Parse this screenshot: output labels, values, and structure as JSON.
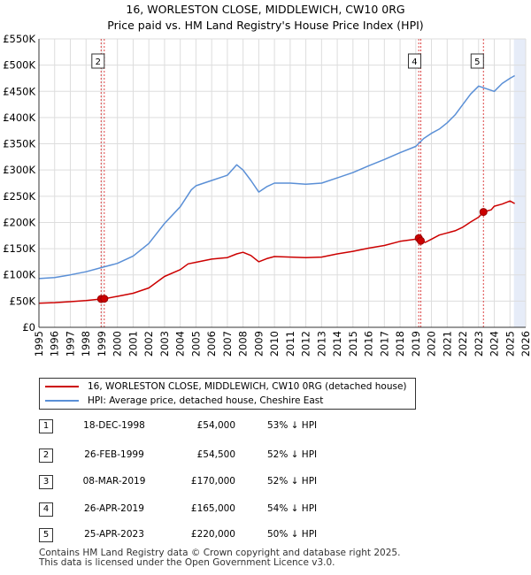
{
  "title": "16, WORLESTON CLOSE, MIDDLEWICH, CW10 0RG",
  "subtitle": "Price paid vs. HM Land Registry's House Price Index (HPI)",
  "chart_data": {
    "type": "line",
    "xlim": [
      1995,
      2026
    ],
    "ylim": [
      0,
      550000
    ],
    "yticks": [
      {
        "value": 0,
        "label": "£0"
      },
      {
        "value": 50000,
        "label": "£50K"
      },
      {
        "value": 100000,
        "label": "£100K"
      },
      {
        "value": 150000,
        "label": "£150K"
      },
      {
        "value": 200000,
        "label": "£200K"
      },
      {
        "value": 250000,
        "label": "£250K"
      },
      {
        "value": 300000,
        "label": "£300K"
      },
      {
        "value": 350000,
        "label": "£350K"
      },
      {
        "value": 400000,
        "label": "£400K"
      },
      {
        "value": 450000,
        "label": "£450K"
      },
      {
        "value": 500000,
        "label": "£500K"
      },
      {
        "value": 550000,
        "label": "£550K"
      }
    ],
    "xticks": [
      "1995",
      "1996",
      "1997",
      "1998",
      "1999",
      "2000",
      "2001",
      "2002",
      "2003",
      "2004",
      "2005",
      "2006",
      "2007",
      "2008",
      "2009",
      "2010",
      "2011",
      "2012",
      "2013",
      "2014",
      "2015",
      "2016",
      "2017",
      "2018",
      "2019",
      "2020",
      "2021",
      "2022",
      "2023",
      "2024",
      "2025",
      "2026"
    ],
    "future_shade_start": 2025.25,
    "series": [
      {
        "name": "16, WORLESTON CLOSE, MIDDLEWICH, CW10 0RG (detached house)",
        "color": "#cc0000",
        "x": [
          1995,
          1996,
          1997,
          1998,
          1998.96,
          1999.16,
          2000,
          2001,
          2002,
          2003,
          2004,
          2004.5,
          2005,
          2006,
          2007,
          2007.6,
          2008,
          2008.5,
          2009,
          2009.5,
          2010,
          2011,
          2012,
          2013,
          2014,
          2015,
          2016,
          2017,
          2018,
          2019.0,
          2019.19,
          2019.32,
          2019.6,
          2020,
          2020.5,
          2021,
          2021.5,
          2022,
          2022.5,
          2023.0,
          2023.31,
          2023.8,
          2024,
          2024.5,
          2025,
          2025.3
        ],
        "values": [
          46000,
          47000,
          49000,
          51000,
          54000,
          54500,
          59000,
          65000,
          75000,
          97000,
          110000,
          121000,
          124000,
          130000,
          133000,
          140000,
          143000,
          137000,
          125000,
          131000,
          135000,
          134000,
          133000,
          134000,
          140000,
          145000,
          151000,
          156000,
          164000,
          168000,
          170000,
          165000,
          162000,
          168000,
          176000,
          180000,
          184000,
          191000,
          201000,
          210000,
          220000,
          224000,
          231000,
          235000,
          241000,
          236000
        ]
      },
      {
        "name": "HPI: Average price, detached house, Cheshire East",
        "color": "#5a8fd6",
        "x": [
          1995,
          1996,
          1997,
          1998,
          1999,
          2000,
          2001,
          2002,
          2003,
          2004,
          2004.7,
          2005,
          2006,
          2007,
          2007.6,
          2008,
          2008.5,
          2009,
          2009.5,
          2010,
          2011,
          2012,
          2013,
          2014,
          2015,
          2016,
          2017,
          2018,
          2019,
          2019.5,
          2020,
          2020.5,
          2021,
          2021.5,
          2022,
          2022.5,
          2023,
          2023.5,
          2024,
          2024.5,
          2025,
          2025.3
        ],
        "values": [
          93000,
          95000,
          100000,
          106000,
          114000,
          122000,
          136000,
          160000,
          198000,
          230000,
          262000,
          270000,
          280000,
          290000,
          310000,
          300000,
          280000,
          258000,
          268000,
          275000,
          275000,
          273000,
          275000,
          285000,
          295000,
          308000,
          320000,
          333000,
          345000,
          360000,
          370000,
          378000,
          390000,
          405000,
          425000,
          445000,
          460000,
          455000,
          450000,
          465000,
          475000,
          480000
        ]
      }
    ],
    "markers": [
      {
        "label": "1",
        "x": 1998.96,
        "value": 54000,
        "show_box": false
      },
      {
        "label": "2",
        "x": 1999.16,
        "value": 54500,
        "show_box": true
      },
      {
        "label": "3",
        "x": 2019.19,
        "value": 170000,
        "show_box": false
      },
      {
        "label": "4",
        "x": 2019.32,
        "value": 165000,
        "show_box": true
      },
      {
        "label": "5",
        "x": 2023.31,
        "value": 220000,
        "show_box": true
      }
    ]
  },
  "legend": {
    "items": [
      {
        "label": "16, WORLESTON CLOSE, MIDDLEWICH, CW10 0RG (detached house)",
        "color": "#cc0000"
      },
      {
        "label": "HPI: Average price, detached house, Cheshire East",
        "color": "#5a8fd6"
      }
    ]
  },
  "transactions": [
    {
      "num": "1",
      "date": "18-DEC-1998",
      "price": "£54,000",
      "hpi": "53% ↓ HPI"
    },
    {
      "num": "2",
      "date": "26-FEB-1999",
      "price": "£54,500",
      "hpi": "52% ↓ HPI"
    },
    {
      "num": "3",
      "date": "08-MAR-2019",
      "price": "£170,000",
      "hpi": "52% ↓ HPI"
    },
    {
      "num": "4",
      "date": "26-APR-2019",
      "price": "£165,000",
      "hpi": "54% ↓ HPI"
    },
    {
      "num": "5",
      "date": "25-APR-2023",
      "price": "£220,000",
      "hpi": "50% ↓ HPI"
    }
  ],
  "footer": {
    "line1": "Contains HM Land Registry data © Crown copyright and database right 2025.",
    "line2": "This data is licensed under the Open Government Licence v3.0."
  }
}
